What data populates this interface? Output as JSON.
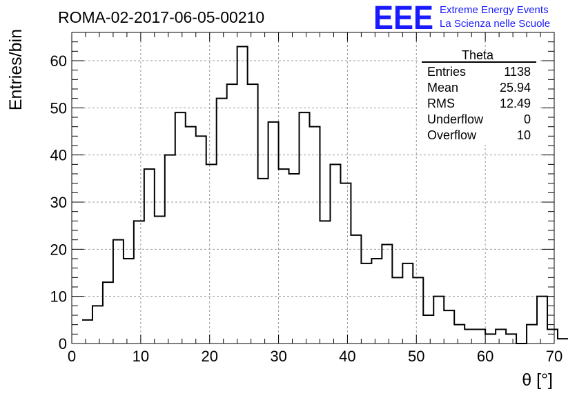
{
  "header": {
    "run_title": "ROMA-02-2017-06-05-00210",
    "logo_letters": "EEE",
    "logo_line1": "Extreme Energy Events",
    "logo_line2": "La Scienza nelle Scuole",
    "brand_color": "#1a1aff"
  },
  "stats_box": {
    "title": "Theta",
    "rows": [
      {
        "label": "Entries",
        "value": "1138"
      },
      {
        "label": "Mean",
        "value": "25.94"
      },
      {
        "label": "RMS",
        "value": "12.49"
      },
      {
        "label": "Underflow",
        "value": "0"
      },
      {
        "label": "Overflow",
        "value": "10"
      }
    ]
  },
  "chart_data": {
    "type": "bar",
    "style": "step-histogram",
    "xlabel": "θ [°]",
    "ylabel": "Entries/bin",
    "xlim": [
      0,
      70
    ],
    "ylim": [
      0,
      66
    ],
    "bin_width": 1.5,
    "bin_start": 1.5,
    "x_ticks": [
      0,
      10,
      20,
      30,
      40,
      50,
      60,
      70
    ],
    "y_ticks": [
      0,
      10,
      20,
      30,
      40,
      50,
      60
    ],
    "grid": true,
    "values": [
      5,
      8,
      13,
      22,
      18,
      26,
      37,
      27,
      40,
      49,
      46,
      44,
      38,
      52,
      55,
      63,
      55,
      35,
      47,
      37,
      36,
      49,
      46,
      26,
      38,
      34,
      23,
      17,
      18,
      21,
      14,
      17,
      14,
      6,
      10,
      7,
      4,
      3,
      3,
      2,
      3,
      2,
      0,
      4,
      10,
      3,
      1
    ]
  }
}
